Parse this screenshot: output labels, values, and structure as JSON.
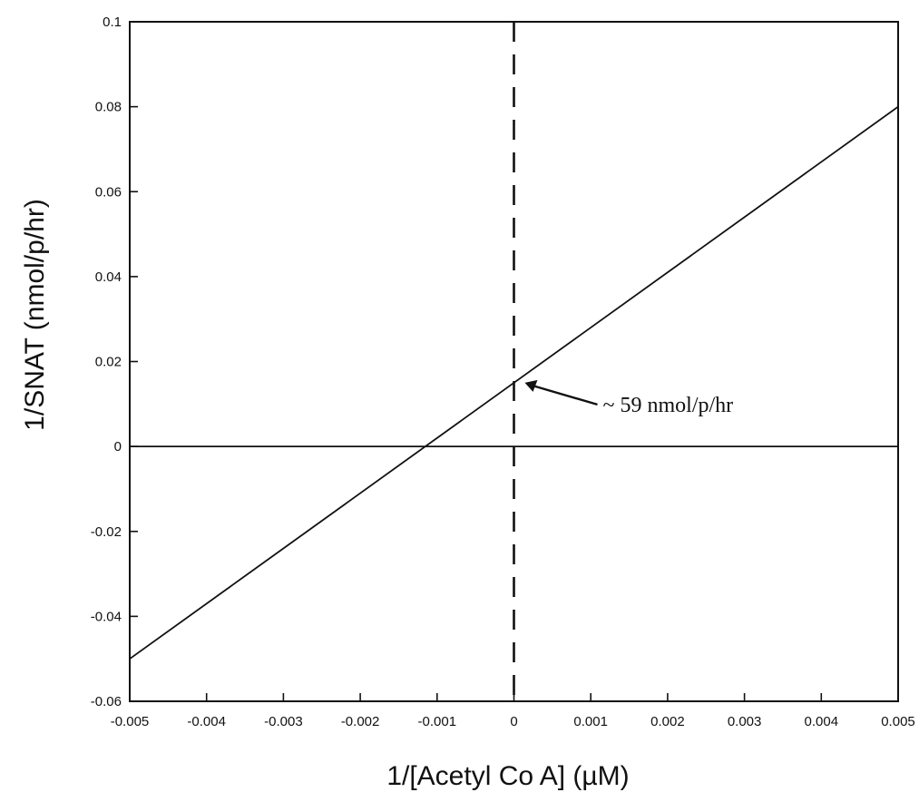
{
  "chart_data": {
    "type": "line",
    "title": "",
    "xlabel": "1/[Acetyl Co A] (µM)",
    "ylabel": "1/SNAT (nmol/p/hr)",
    "xlim": [
      -0.005,
      0.005
    ],
    "ylim": [
      -0.06,
      0.1
    ],
    "x_ticks": [
      -0.005,
      -0.004,
      -0.003,
      -0.002,
      -0.001,
      0,
      0.001,
      0.002,
      0.003,
      0.004,
      0.005
    ],
    "x_tick_labels": [
      "-0.005",
      "-0.004",
      "-0.003",
      "-0.002",
      "-0.001",
      "0",
      "0.001",
      "0.002",
      "0.003",
      "0.004",
      "0.005"
    ],
    "y_ticks": [
      -0.06,
      -0.04,
      -0.02,
      0,
      0.02,
      0.04,
      0.06,
      0.08,
      0.1
    ],
    "y_tick_labels": [
      "-0.06",
      "-0.04",
      "-0.02",
      "0",
      "0.02",
      "0.04",
      "0.06",
      "0.08",
      "0.1"
    ],
    "grid": false,
    "legend": "none",
    "series": [
      {
        "x": [
          -0.005,
          0.005
        ],
        "y": [
          -0.05,
          0.08
        ],
        "style": "solid"
      }
    ],
    "reference_lines": [
      {
        "orientation": "horizontal",
        "y": 0,
        "style": "solid"
      },
      {
        "orientation": "vertical",
        "x": 0,
        "style": "dashed"
      }
    ],
    "annotations": [
      {
        "text": "~ 59 nmol/p/hr",
        "point_x": 0,
        "point_y": 0.015,
        "arrow": true
      }
    ],
    "colors": {
      "line": "#111111",
      "background": "#ffffff"
    }
  }
}
